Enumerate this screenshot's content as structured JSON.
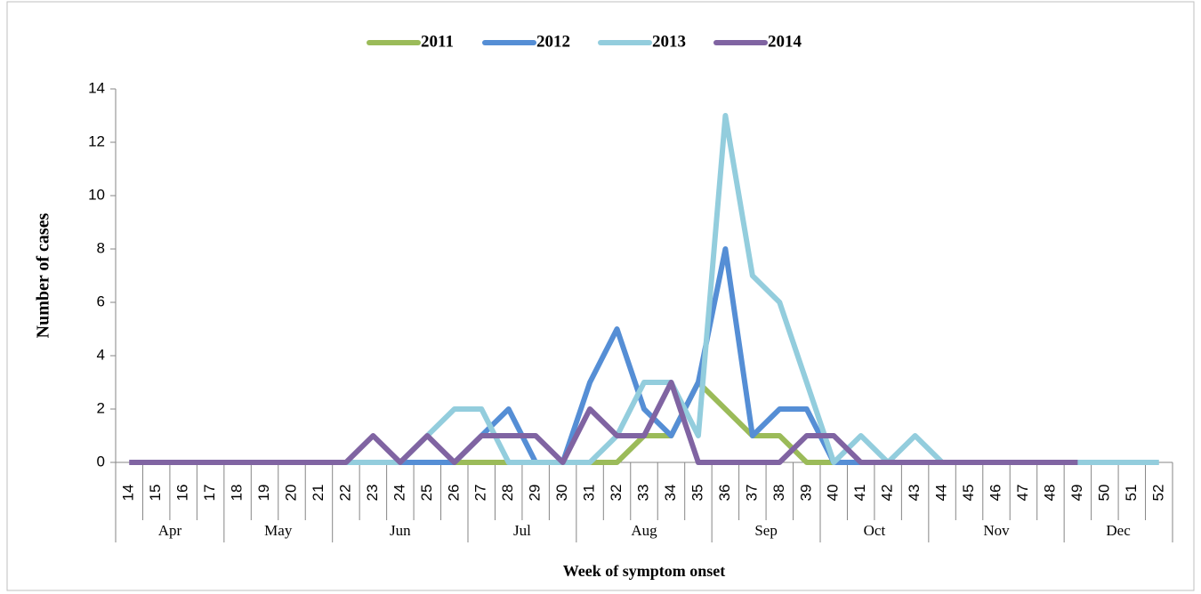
{
  "chart_data": {
    "type": "line",
    "x_label": "Week of symptom onset",
    "y_label": "Number of cases",
    "categories": [
      "14",
      "15",
      "16",
      "17",
      "18",
      "19",
      "20",
      "21",
      "22",
      "23",
      "24",
      "25",
      "26",
      "27",
      "28",
      "29",
      "30",
      "31",
      "32",
      "33",
      "34",
      "35",
      "36",
      "37",
      "38",
      "39",
      "40",
      "41",
      "42",
      "43",
      "44",
      "45",
      "46",
      "47",
      "48",
      "49",
      "50",
      "51",
      "52"
    ],
    "groups": [
      {
        "label": "Apr",
        "count": 4
      },
      {
        "label": "May",
        "count": 4
      },
      {
        "label": "Jun",
        "count": 5
      },
      {
        "label": "Jul",
        "count": 4
      },
      {
        "label": "Aug",
        "count": 5
      },
      {
        "label": "Sep",
        "count": 4
      },
      {
        "label": "Oct",
        "count": 4
      },
      {
        "label": "Nov",
        "count": 5
      },
      {
        "label": "Dec",
        "count": 4
      }
    ],
    "series": [
      {
        "name": "2011",
        "color": "#9bbb59",
        "values": [
          null,
          null,
          null,
          null,
          null,
          null,
          null,
          null,
          null,
          null,
          null,
          null,
          0,
          0,
          0,
          0,
          0,
          0,
          0,
          1,
          1,
          3,
          2,
          1,
          1,
          0,
          0,
          null,
          null,
          null,
          null,
          null,
          null,
          null,
          null,
          null,
          null,
          null,
          null
        ]
      },
      {
        "name": "2012",
        "color": "#558ed5",
        "values": [
          null,
          null,
          null,
          null,
          null,
          null,
          null,
          null,
          null,
          null,
          0,
          0,
          0,
          1,
          2,
          0,
          0,
          3,
          5,
          2,
          1,
          3,
          8,
          1,
          2,
          2,
          0,
          0,
          null,
          null,
          null,
          null,
          null,
          null,
          null,
          null,
          null,
          null,
          null
        ]
      },
      {
        "name": "2013",
        "color": "#93cddd",
        "values": [
          null,
          null,
          null,
          null,
          null,
          null,
          null,
          null,
          0,
          0,
          0,
          1,
          2,
          2,
          0,
          0,
          0,
          0,
          1,
          3,
          3,
          1,
          13,
          7,
          6,
          3,
          0,
          1,
          0,
          1,
          0,
          0,
          0,
          0,
          0,
          0,
          0,
          0,
          0
        ]
      },
      {
        "name": "2014",
        "color": "#8064a2",
        "values": [
          0,
          0,
          0,
          0,
          0,
          0,
          0,
          0,
          0,
          1,
          0,
          1,
          0,
          1,
          1,
          1,
          0,
          2,
          1,
          1,
          3,
          0,
          0,
          0,
          0,
          1,
          1,
          0,
          0,
          0,
          0,
          0,
          0,
          0,
          0,
          0,
          null,
          null,
          null
        ]
      }
    ],
    "ylim": [
      0,
      14
    ],
    "yticks": [
      0,
      2,
      4,
      6,
      8,
      10,
      12,
      14
    ],
    "legend": "top"
  }
}
